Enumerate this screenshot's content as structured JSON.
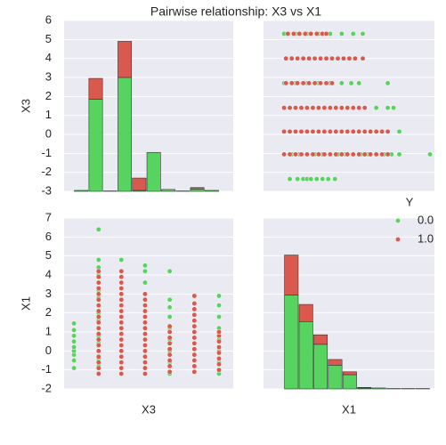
{
  "chart_data": {
    "type": "pairplot",
    "title": "Pairwise relationship: X3 vs X1",
    "variables": [
      "X3",
      "X1"
    ],
    "legend_title": "Y",
    "grid": true,
    "axes": {
      "X3": {
        "xlim": [
          -2.87,
          6.05
        ],
        "ylim": [
          -3,
          6
        ],
        "yticks": [
          -3,
          -2,
          -1,
          0,
          1,
          2,
          3,
          4,
          5,
          6
        ]
      },
      "X1": {
        "xlim": [
          -2.27,
          6.63
        ],
        "ylim": [
          -2,
          7
        ],
        "yticks": [
          -2,
          -1,
          0,
          1,
          2,
          3,
          4,
          5,
          6,
          7
        ]
      }
    },
    "bins": {
      "X3": [
        -2.35,
        -1.585,
        -0.82,
        -0.055,
        0.71,
        1.475,
        2.24,
        3.005,
        3.77,
        4.535,
        5.3
      ],
      "X1": [
        -1.2,
        -0.44,
        0.32,
        1.08,
        1.84,
        2.6,
        3.36,
        4.12,
        4.88,
        5.64,
        6.4
      ]
    },
    "series": [
      {
        "name": "0.0",
        "color": "#57d35f",
        "hist": {
          "X3": [
            0.05,
            4.85,
            0.02,
            6.0,
            0.05,
            2.05,
            0.1,
            0.02,
            0.12,
            0.05
          ],
          "X1": [
            4.95,
            3.55,
            2.35,
            1.25,
            0.75,
            0.05,
            0.05,
            0.02,
            0.02,
            0.02
          ]
        },
        "points": {
          "X3": [
            -2.35,
            -2.35,
            -2.35,
            -2.35,
            -2.35,
            -2.35,
            -2.35,
            -2.35,
            -2.35,
            -1.05,
            -1.05,
            -1.05,
            -1.05,
            -1.05,
            -1.05,
            -1.05,
            -1.05,
            -1.05,
            -1.05,
            -1.05,
            -1.05,
            -1.05,
            -1.05,
            -1.05,
            -1.05,
            -1.05,
            0.15,
            0.15,
            0.15,
            0.15,
            0.15,
            0.15,
            0.15,
            0.15,
            0.15,
            0.15,
            0.15,
            1.4,
            1.4,
            1.4,
            1.4,
            1.4,
            1.4,
            1.4,
            1.4,
            1.4,
            1.4,
            1.4,
            2.7,
            2.7,
            2.7,
            2.7,
            2.7,
            2.7,
            2.7,
            2.7,
            2.7,
            4.0,
            4.0,
            4.0,
            4.0,
            4.0,
            4.0,
            4.0,
            5.3,
            5.3,
            5.3,
            5.3,
            5.3,
            5.3,
            5.3,
            5.3
          ],
          "X1": [
            -0.9,
            -0.5,
            -0.2,
            0,
            0.2,
            0.5,
            0.8,
            1.1,
            1.45,
            -1.2,
            -0.8,
            -0.4,
            0,
            0.4,
            0.8,
            1.2,
            1.6,
            2,
            2.4,
            2.8,
            3.2,
            3.6,
            4,
            4.4,
            4.8,
            6.4,
            -1.2,
            -0.6,
            0,
            0.6,
            1.2,
            1.8,
            2.4,
            3,
            3.6,
            4.2,
            4.8,
            -1.2,
            -0.6,
            0,
            0.6,
            1.2,
            1.8,
            2.4,
            3,
            3.6,
            4.2,
            4.5,
            -1.2,
            -0.6,
            0,
            0.6,
            1.2,
            1.8,
            2.3,
            2.7,
            4.2,
            -1.1,
            -0.5,
            0.1,
            0.7,
            1.3,
            1.9,
            2.5,
            -1.2,
            -0.6,
            0,
            0.6,
            1.2,
            1.8,
            2.4,
            2.9
          ]
        }
      },
      {
        "name": "1.0",
        "color": "#d9594f",
        "hist": {
          "X3": [
            0,
            1.1,
            0,
            1.9,
            0.65,
            0,
            0,
            0,
            0.08,
            0
          ],
          "X1": [
            2.1,
            0.9,
            0.5,
            0.3,
            0.15,
            0.03,
            0,
            0,
            0,
            0
          ]
        },
        "points": {
          "X3": [
            -1.05,
            -1.05,
            -1.05,
            -1.05,
            -1.05,
            -1.05,
            -1.05,
            -1.05,
            -1.05,
            -1.05,
            -1.05,
            -1.05,
            -1.05,
            -1.05,
            -1.05,
            -1.05,
            -1.05,
            -1.05,
            -1.05,
            0.15,
            0.15,
            0.15,
            0.15,
            0.15,
            0.15,
            0.15,
            0.15,
            0.15,
            0.15,
            0.15,
            0.15,
            0.15,
            0.15,
            0.15,
            0.15,
            0.15,
            0.15,
            0.15,
            1.4,
            1.4,
            1.4,
            1.4,
            1.4,
            1.4,
            1.4,
            1.4,
            1.4,
            1.4,
            1.4,
            1.4,
            1.4,
            1.4,
            1.4,
            2.7,
            2.7,
            2.7,
            2.7,
            2.7,
            2.7,
            2.7,
            2.7,
            2.7,
            4.0,
            4.0,
            4.0,
            4.0,
            4.0,
            4.0,
            4.0,
            4.0,
            4.0,
            4.0,
            4.0,
            4.0,
            4.0,
            4.0,
            5.3,
            5.3,
            5.3,
            5.3,
            5.3,
            5.3,
            5.3,
            5.3
          ],
          "X1": [
            -1.2,
            -0.9,
            -0.6,
            -0.3,
            0,
            0.3,
            0.6,
            0.9,
            1.2,
            1.5,
            1.8,
            2.1,
            2.4,
            2.7,
            3,
            3.3,
            3.6,
            3.9,
            4.2,
            -1.2,
            -0.9,
            -0.6,
            -0.3,
            0,
            0.3,
            0.6,
            0.9,
            1.2,
            1.5,
            1.8,
            2.1,
            2.4,
            2.7,
            3,
            3.3,
            3.6,
            3.9,
            4.2,
            -1.2,
            -0.9,
            -0.6,
            -0.3,
            0,
            0.3,
            0.6,
            0.9,
            1.2,
            1.5,
            1.8,
            2.1,
            2.4,
            2.7,
            3,
            -1.1,
            -0.8,
            -0.5,
            -0.2,
            0.1,
            0.4,
            0.7,
            1,
            1.3,
            -1.1,
            -0.8,
            -0.5,
            -0.2,
            0.1,
            0.4,
            0.7,
            1,
            1.3,
            1.6,
            1.9,
            2.2,
            2.5,
            2.9,
            -1,
            -0.7,
            -0.4,
            -0.1,
            0.2,
            0.5,
            0.8,
            1
          ]
        }
      }
    ]
  }
}
